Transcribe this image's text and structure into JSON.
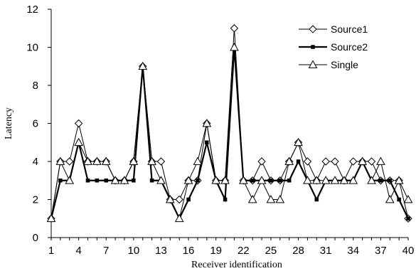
{
  "chart_data": {
    "type": "line",
    "title": "",
    "xlabel": "Receiver identification",
    "ylabel": "Latency",
    "x": [
      1,
      2,
      3,
      4,
      5,
      6,
      7,
      8,
      9,
      10,
      11,
      12,
      13,
      14,
      15,
      16,
      17,
      18,
      19,
      20,
      21,
      22,
      23,
      24,
      25,
      26,
      27,
      28,
      29,
      30,
      31,
      32,
      33,
      34,
      35,
      36,
      37,
      38,
      39,
      40
    ],
    "x_tick_labels": [
      "1",
      "4",
      "7",
      "10",
      "13",
      "16",
      "19",
      "22",
      "25",
      "28",
      "31",
      "34",
      "37",
      "40"
    ],
    "x_tick_values": [
      1,
      4,
      7,
      10,
      13,
      16,
      19,
      22,
      25,
      28,
      31,
      34,
      37,
      40
    ],
    "xlim": [
      1,
      40
    ],
    "ylim": [
      0,
      12
    ],
    "y_ticks": [
      0,
      2,
      4,
      6,
      8,
      10,
      12
    ],
    "grid": false,
    "legend_position": "top-right",
    "series": [
      {
        "name": "Source1",
        "marker": "diamond-open",
        "color": "#000000",
        "values": [
          1,
          4,
          4,
          6,
          4,
          4,
          4,
          3,
          3,
          4,
          9,
          4,
          4,
          2,
          2,
          3,
          3,
          6,
          3,
          3,
          11,
          3,
          3,
          4,
          3,
          3,
          4,
          5,
          4,
          3,
          4,
          4,
          3,
          4,
          4,
          4,
          3,
          3,
          3,
          1
        ]
      },
      {
        "name": "Source2",
        "marker": "square-filled",
        "color": "#000000",
        "values": [
          1,
          3,
          3,
          5,
          3,
          3,
          3,
          3,
          3,
          3,
          9,
          3,
          3,
          2,
          1,
          2,
          3,
          5,
          3,
          2,
          10,
          3,
          3,
          3,
          3,
          3,
          3,
          4,
          3,
          2,
          3,
          3,
          3,
          3,
          4,
          3,
          3,
          3,
          2,
          1
        ]
      },
      {
        "name": "Single",
        "marker": "triangle-open",
        "color": "#000000",
        "values": [
          1,
          4,
          3,
          5,
          4,
          4,
          4,
          3,
          3,
          4,
          9,
          4,
          3,
          2,
          1,
          3,
          4,
          6,
          3,
          3,
          10,
          3,
          2,
          3,
          2,
          2,
          4,
          5,
          3,
          3,
          3,
          3,
          3,
          3,
          4,
          3,
          4,
          2,
          3,
          2
        ]
      }
    ]
  }
}
